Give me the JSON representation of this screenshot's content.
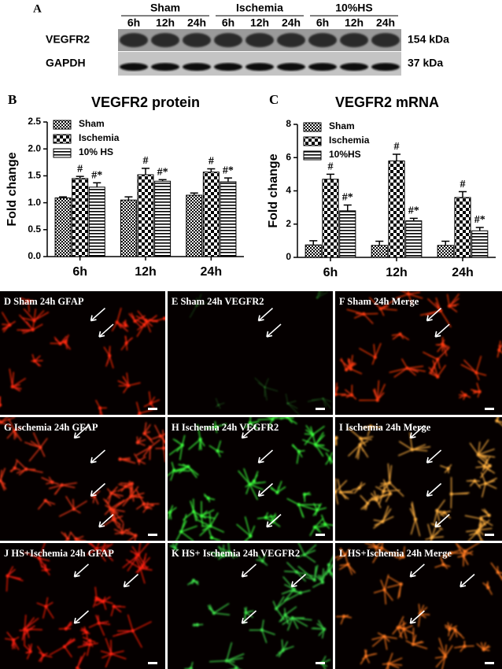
{
  "blot": {
    "panel_label": "A",
    "groups": [
      {
        "name": "Sham",
        "times": [
          "6h",
          "12h",
          "24h"
        ]
      },
      {
        "name": "Ischemia",
        "times": [
          "6h",
          "12h",
          "24h"
        ]
      },
      {
        "name": "10%HS",
        "times": [
          "6h",
          "12h",
          "24h"
        ]
      }
    ],
    "bands": [
      {
        "label": "VEGFR2",
        "size": "154 kDa"
      },
      {
        "label": "GAPDH",
        "size": "37 kDa"
      }
    ]
  },
  "chart_data": [
    {
      "type": "bar",
      "panel_label": "B",
      "title": "VEGFR2 protein",
      "y_label": "Fold change",
      "categories": [
        "6h",
        "12h",
        "24h"
      ],
      "ylim": [
        0,
        2.5
      ],
      "yticks": [
        {
          "value": 0,
          "label": "0.0"
        },
        0.5,
        {
          "value": 1,
          "label": "1.0"
        },
        1.5,
        {
          "value": 2,
          "label": "2.0"
        },
        2.5
      ],
      "grid": false,
      "series": [
        {
          "name": "Sham",
          "pattern": "small-checker",
          "color": "#000000",
          "values": [
            1.09,
            1.05,
            1.14
          ],
          "errors": [
            0.02,
            0.06,
            0.04
          ],
          "annotations": [
            null,
            null,
            null
          ]
        },
        {
          "name": "Ischemia",
          "pattern": "large-checker",
          "color": "#000000",
          "values": [
            1.45,
            1.52,
            1.57
          ],
          "errors": [
            0.04,
            0.12,
            0.06
          ],
          "annotations": [
            "#",
            "#",
            "#"
          ]
        },
        {
          "name": "10% HS",
          "pattern": "horizontal-lines",
          "color": "#000000",
          "values": [
            1.29,
            1.4,
            1.39
          ],
          "errors": [
            0.08,
            0.03,
            0.07
          ],
          "annotations": [
            "#*",
            "#*",
            "#*"
          ]
        }
      ]
    },
    {
      "type": "bar",
      "panel_label": "C",
      "title": "VEGFR2 mRNA",
      "y_label": "Fold change",
      "categories": [
        "6h",
        "12h",
        "24h"
      ],
      "ylim": [
        0,
        8
      ],
      "yticks": [
        0,
        2,
        4,
        6,
        8
      ],
      "grid": false,
      "series": [
        {
          "name": "Sham",
          "pattern": "small-checker",
          "color": "#000000",
          "values": [
            0.75,
            0.72,
            0.72
          ],
          "errors": [
            0.25,
            0.25,
            0.25
          ],
          "annotations": [
            null,
            null,
            null
          ]
        },
        {
          "name": "Ischemia",
          "pattern": "large-checker",
          "color": "#000000",
          "values": [
            4.7,
            5.8,
            3.6
          ],
          "errors": [
            0.3,
            0.4,
            0.35
          ],
          "annotations": [
            "#",
            "#",
            "#"
          ]
        },
        {
          "name": "10%HS",
          "pattern": "horizontal-lines",
          "color": "#000000",
          "values": [
            2.8,
            2.2,
            1.6
          ],
          "errors": [
            0.35,
            0.15,
            0.2
          ],
          "annotations": [
            "#*",
            "#*",
            "#*"
          ]
        }
      ]
    }
  ],
  "images": {
    "panels": [
      {
        "label": "D Sham 24h GFAP"
      },
      {
        "label": "E Sham 24h VEGFR2"
      },
      {
        "label": "F Sham 24h Merge"
      },
      {
        "label": "G Ischemia 24h GFAP"
      },
      {
        "label": "H Ischemia 24h VEGFR2"
      },
      {
        "label": "I Ischemia 24h  Merge"
      },
      {
        "label": "J HS+Ischemia 24h GFAP"
      },
      {
        "label": "K HS+ Ischemia 24h VEGFR2"
      },
      {
        "label": "L HS+Ischemia 24h Merge"
      }
    ]
  }
}
